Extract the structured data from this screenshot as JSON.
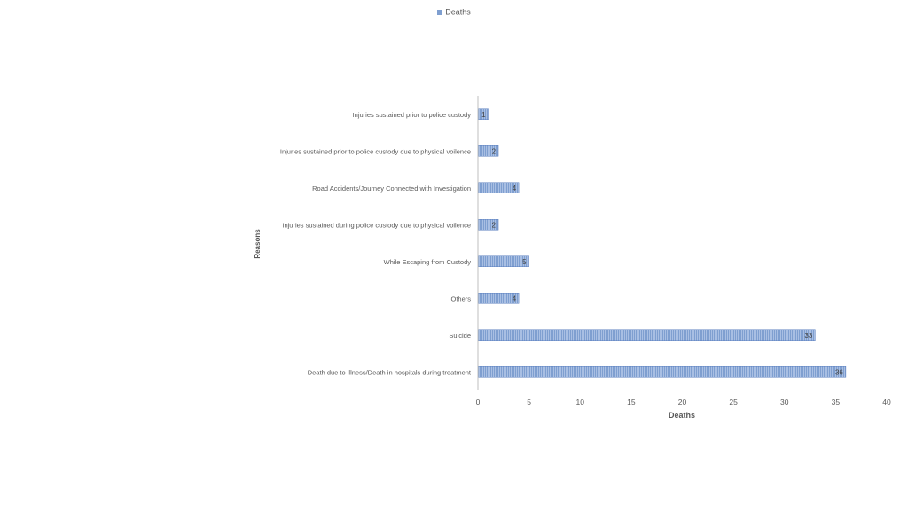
{
  "chart_data": {
    "type": "bar",
    "orientation": "horizontal",
    "categories": [
      "Injuries sustained prior to police custody",
      "Injuries sustained prior to police custody due to physical voilence",
      "Road Accidents/Journey Connected with Investigation",
      "Injuries sustained during police custody due to physical  voilence",
      "While Escaping from Custody",
      "Others",
      "Suicide",
      "Death due to illness/Death in hospitals during treatment"
    ],
    "series": [
      {
        "name": "Deaths",
        "values": [
          1,
          2,
          4,
          2,
          5,
          4,
          33,
          36
        ]
      }
    ],
    "xlabel": "Deaths",
    "ylabel": "Reasons",
    "xlim": [
      0,
      40
    ],
    "xticks": [
      0,
      5,
      10,
      15,
      20,
      25,
      30,
      35,
      40
    ],
    "legend_position": "top",
    "grid": false,
    "colors": {
      "bar": "#7f9fd0",
      "bar_stripe": "#a9bfe3",
      "bar_edge": "#5b7fbf",
      "axis": "#bfbfbf",
      "text": "#595959"
    }
  }
}
